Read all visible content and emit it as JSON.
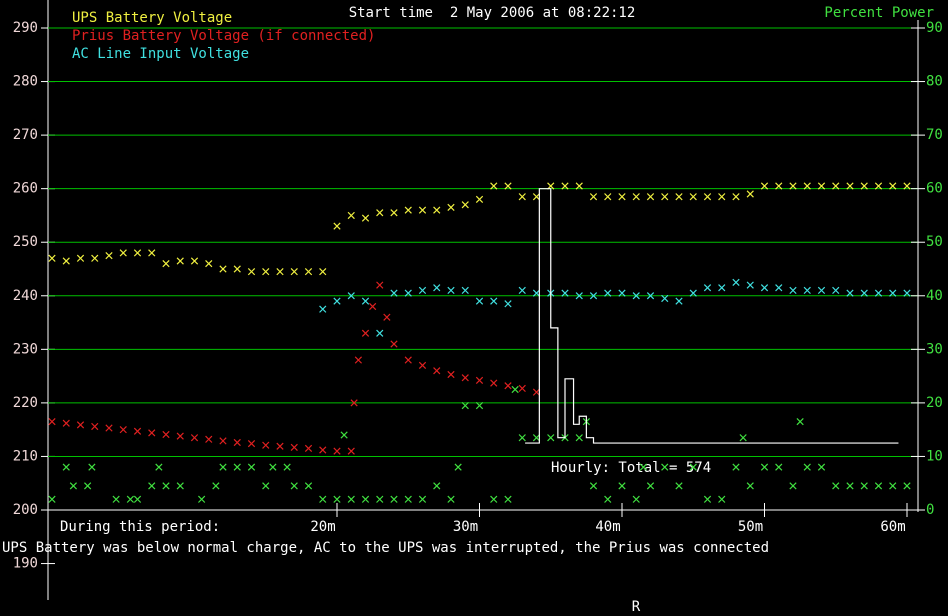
{
  "chart_data": {
    "type": "scatter",
    "title": "Start time  2 May 2006 at 08:22:12",
    "y2label": "Percent Power",
    "xlim": [
      0,
      60
    ],
    "xticks": [
      {
        "value": 20,
        "label": "20m"
      },
      {
        "value": 30,
        "label": "30m"
      },
      {
        "value": 40,
        "label": "40m"
      },
      {
        "value": 50,
        "label": "50m"
      },
      {
        "value": 60,
        "label": "60m"
      }
    ],
    "ylim": [
      200,
      290
    ],
    "yticks": [
      190,
      200,
      210,
      220,
      230,
      240,
      250,
      260,
      270,
      280,
      290
    ],
    "y2lim": [
      0,
      90
    ],
    "y2ticks": [
      0,
      10,
      20,
      30,
      40,
      50,
      60,
      70,
      80,
      90
    ],
    "grid": true,
    "grid_color": "#00c000",
    "x": [
      0,
      1,
      2,
      3,
      4,
      5,
      6,
      7,
      8,
      9,
      10,
      11,
      12,
      13,
      14,
      15,
      16,
      17,
      18,
      19,
      20,
      21,
      22,
      23,
      24,
      25,
      26,
      27,
      28,
      29,
      30,
      31,
      32,
      33,
      34,
      35,
      36,
      37,
      38,
      39,
      40,
      41,
      42,
      43,
      44,
      45,
      46,
      47,
      48,
      49,
      50,
      51,
      52,
      53,
      54,
      55,
      56,
      57,
      58,
      59,
      60
    ],
    "series": [
      {
        "name": "UPS Battery Voltage",
        "color": "#f0f040",
        "values": [
          247,
          246.5,
          247,
          247,
          247.5,
          248,
          248,
          248,
          246,
          246.5,
          246.5,
          246,
          245,
          245,
          244.5,
          244.5,
          244.5,
          244.5,
          244.5,
          244.5,
          253,
          255,
          254.5,
          255.5,
          255.5,
          256,
          256,
          256,
          256.5,
          257,
          258,
          260.5,
          260.5,
          258.5,
          258.5,
          260.5,
          260.5,
          260.5,
          258.5,
          258.5,
          258.5,
          258.5,
          258.5,
          258.5,
          258.5,
          258.5,
          258.5,
          258.5,
          258.5,
          259,
          260.5,
          260.5,
          260.5,
          260.5,
          260.5,
          260.5,
          260.5,
          260.5,
          260.5,
          260.5,
          260.5
        ]
      },
      {
        "name": "Prius Battery Voltage (if connected)",
        "color": "#e02020",
        "x": [
          0,
          1,
          2,
          3,
          4,
          5,
          6,
          7,
          8,
          9,
          10,
          11,
          12,
          13,
          14,
          15,
          16,
          17,
          18,
          19,
          20,
          21,
          21.2,
          21.5,
          22,
          22.5,
          23,
          23.5,
          24,
          25,
          26,
          27,
          28,
          29,
          30,
          31,
          32,
          33,
          34
        ],
        "values": [
          216.5,
          216.2,
          215.9,
          215.6,
          215.3,
          215,
          214.7,
          214.4,
          214.1,
          213.8,
          213.5,
          213.2,
          212.9,
          212.6,
          212.4,
          212.1,
          211.9,
          211.7,
          211.5,
          211.2,
          211,
          211,
          220,
          228,
          233,
          238,
          242,
          236,
          231,
          228,
          227,
          226,
          225.3,
          224.7,
          224.2,
          223.7,
          223.2,
          222.7,
          222
        ]
      },
      {
        "name": "AC Line Input Voltage",
        "color": "#40e0e0",
        "values": [
          null,
          null,
          null,
          null,
          null,
          null,
          null,
          null,
          null,
          null,
          null,
          null,
          null,
          null,
          null,
          null,
          null,
          null,
          null,
          237.5,
          239,
          240,
          239,
          233,
          240.5,
          240.5,
          241,
          241.5,
          241,
          241,
          239,
          239,
          238.5,
          241,
          240.5,
          240.5,
          240.5,
          240,
          240,
          240.5,
          240.5,
          240,
          240,
          239.5,
          239,
          240.5,
          241.5,
          241.5,
          242.5,
          242,
          241.5,
          241.5,
          241,
          241,
          241,
          241,
          240.5,
          240.5,
          240.5,
          240.5,
          240.5
        ]
      },
      {
        "color": "#40e040",
        "axis": "y2",
        "x": [
          0,
          1,
          1.5,
          2.5,
          2.8,
          4.5,
          5.5,
          6,
          7,
          7.5,
          8,
          9,
          10.5,
          11.5,
          12,
          13,
          14,
          15,
          15.5,
          16.5,
          17,
          18,
          19,
          20,
          20.5,
          21,
          22,
          23,
          24,
          25,
          26,
          27,
          28,
          28.5,
          29,
          30,
          31,
          32,
          32.5,
          33,
          34,
          35,
          36,
          37,
          37.5,
          38,
          39,
          40,
          41,
          41.5,
          42,
          43,
          44,
          45,
          46,
          47,
          48,
          48.5,
          49,
          50,
          51,
          52,
          52.5,
          53,
          54,
          55,
          56,
          57,
          58,
          59,
          60
        ],
        "values": [
          2,
          8,
          4.5,
          4.5,
          8,
          2,
          2,
          2,
          4.5,
          8,
          4.5,
          4.5,
          2,
          4.5,
          8,
          8,
          8,
          4.5,
          8,
          8,
          4.5,
          4.5,
          2,
          2,
          14,
          2,
          2,
          2,
          2,
          2,
          2,
          4.5,
          2,
          8,
          19.5,
          19.5,
          2,
          2,
          22.5,
          13.5,
          13.5,
          13.5,
          13.5,
          13.5,
          16.5,
          4.5,
          2,
          4.5,
          2,
          8,
          4.5,
          8,
          4.5,
          8,
          2,
          2,
          8,
          13.5,
          4.5,
          8,
          8,
          4.5,
          16.5,
          8,
          8,
          4.5,
          4.5,
          4.5,
          4.5,
          4.5,
          4.5
        ]
      },
      {
        "type": "line",
        "color": "#ffffff",
        "axis": "y2",
        "x": [
          33.2,
          34.2,
          34.2,
          35,
          35,
          35.5,
          35.5,
          36,
          36,
          36.6,
          36.6,
          37,
          37,
          37.5,
          37.5,
          38,
          38,
          59.4
        ],
        "values": [
          12.5,
          12.5,
          60,
          60,
          34,
          34,
          13.5,
          13.5,
          24.5,
          24.5,
          16,
          16,
          17.5,
          17.5,
          13.5,
          13.5,
          12.5,
          12.5
        ]
      }
    ],
    "annotations": [
      "Hourly: Total = 574"
    ],
    "period_heading": "During this period:",
    "period_text": "UPS Battery was below normal charge, AC to the UPS was interrupted, the Prius was connected",
    "footer_mark": "R"
  }
}
